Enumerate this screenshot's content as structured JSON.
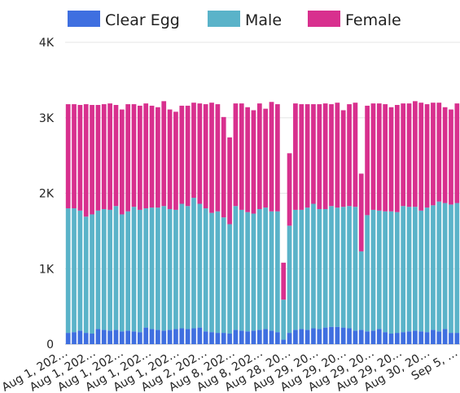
{
  "chart_data": {
    "type": "bar",
    "stacked": true,
    "title": "",
    "xlabel": "",
    "ylabel": "",
    "ylim": [
      0,
      4000
    ],
    "yticks": [
      0,
      1000,
      2000,
      3000,
      4000
    ],
    "ytick_labels": [
      "0",
      "1K",
      "2K",
      "3K",
      "4K"
    ],
    "grid": true,
    "legend_position": "top",
    "series": [
      {
        "name": "Clear Egg",
        "color": "#3f6fe0",
        "values": [
          150,
          160,
          180,
          150,
          140,
          200,
          190,
          180,
          190,
          170,
          180,
          170,
          160,
          220,
          200,
          190,
          180,
          190,
          200,
          210,
          200,
          210,
          220,
          170,
          160,
          150,
          150,
          140,
          190,
          180,
          170,
          180,
          190,
          200,
          180,
          160,
          60,
          150,
          190,
          200,
          190,
          210,
          200,
          220,
          230,
          230,
          220,
          210,
          180,
          190,
          170,
          180,
          200,
          160,
          140,
          150,
          160,
          170,
          180,
          170,
          160,
          190,
          170,
          200,
          150,
          150
        ]
      },
      {
        "name": "Male",
        "color": "#5ab3c9",
        "values": [
          1650,
          1640,
          1590,
          1540,
          1580,
          1570,
          1600,
          1600,
          1640,
          1550,
          1580,
          1650,
          1620,
          1580,
          1610,
          1620,
          1650,
          1600,
          1580,
          1650,
          1630,
          1730,
          1640,
          1630,
          1580,
          1610,
          1530,
          1450,
          1640,
          1600,
          1580,
          1550,
          1600,
          1610,
          1580,
          1600,
          530,
          1420,
          1590,
          1580,
          1620,
          1650,
          1590,
          1570,
          1600,
          1580,
          1600,
          1620,
          1640,
          1040,
          1540,
          1600,
          1570,
          1600,
          1620,
          1600,
          1670,
          1650,
          1640,
          1600,
          1650,
          1650,
          1720,
          1670,
          1700,
          1720
        ]
      },
      {
        "name": "Female",
        "color": "#d8308e",
        "values": [
          1380,
          1380,
          1400,
          1490,
          1450,
          1400,
          1390,
          1410,
          1340,
          1390,
          1420,
          1360,
          1380,
          1390,
          1350,
          1330,
          1390,
          1320,
          1300,
          1300,
          1330,
          1260,
          1330,
          1380,
          1460,
          1420,
          1330,
          1150,
          1360,
          1410,
          1390,
          1370,
          1400,
          1310,
          1450,
          1420,
          490,
          960,
          1410,
          1400,
          1370,
          1320,
          1390,
          1400,
          1350,
          1390,
          1280,
          1350,
          1380,
          1030,
          1450,
          1410,
          1420,
          1420,
          1380,
          1420,
          1360,
          1370,
          1400,
          1430,
          1370,
          1360,
          1310,
          1270,
          1260,
          1320
        ]
      }
    ],
    "x_tick_labels": [
      "Aug 1, 202…",
      "Aug 1, 202…",
      "Aug 1, 202…",
      "Aug 1, 202…",
      "Aug 1, 202…",
      "Aug 2, 202…",
      "Aug 8, 202…",
      "Aug 8, 202…",
      "Aug 28, 20…",
      "Aug 29, 20…",
      "Aug 29, 20…",
      "Aug 29, 20…",
      "Aug 29, 20…",
      "Aug 30, 20…",
      "Sep 5, …"
    ]
  }
}
